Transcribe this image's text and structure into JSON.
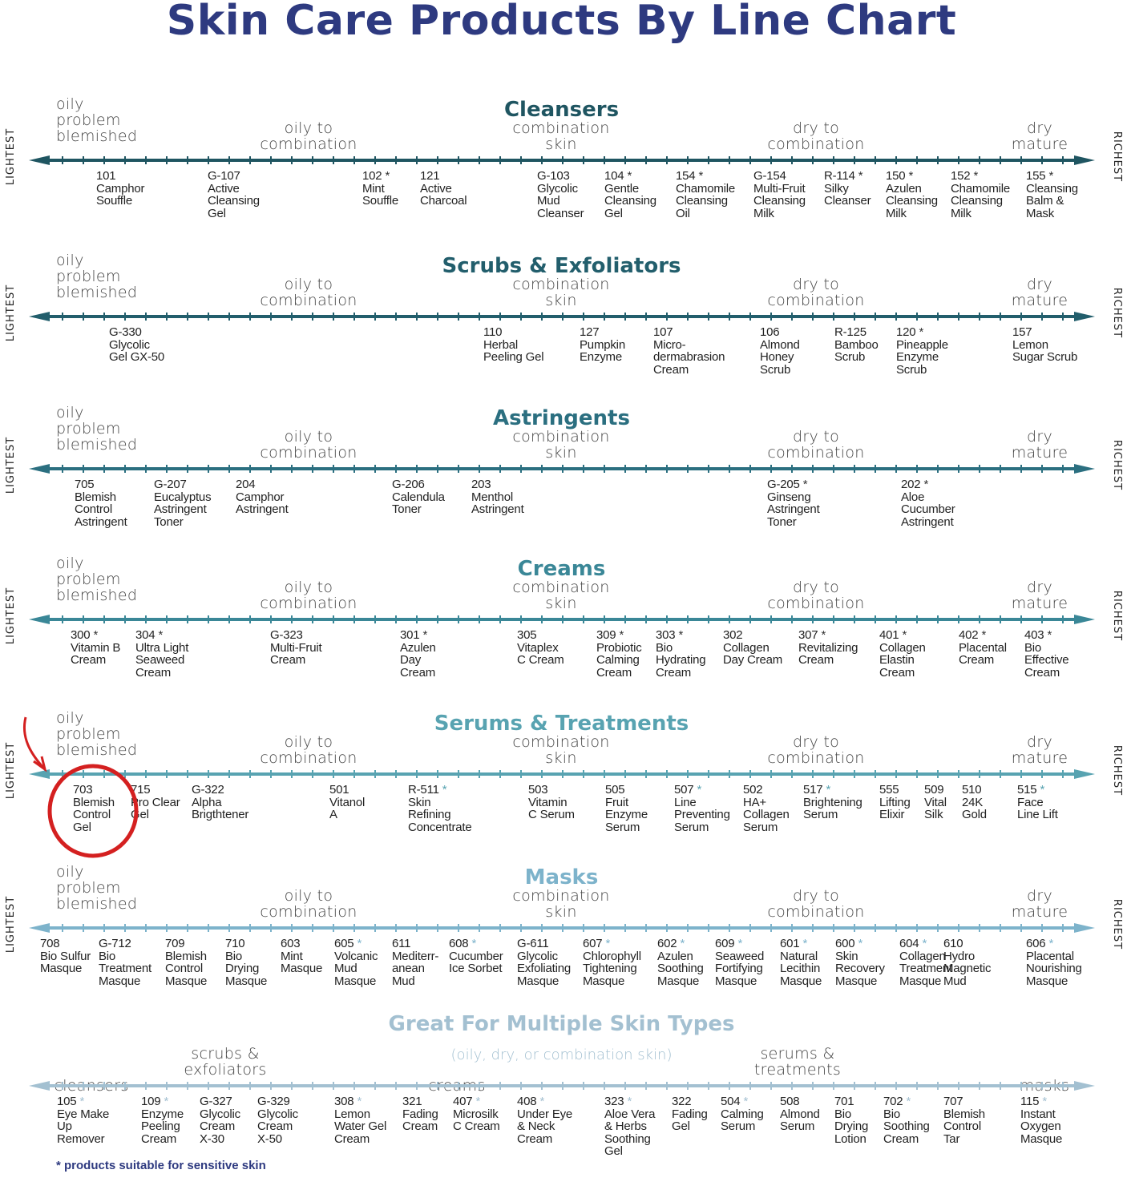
{
  "title": "Skin Care Products By Line Chart",
  "side_left": "LIGHTEST",
  "side_right": "RICHEST",
  "zones": {
    "z1": [
      "oily",
      "problem",
      "blemished"
    ],
    "z2": [
      "oily to",
      "combination"
    ],
    "z3": [
      "combination",
      "skin"
    ],
    "z4": [
      "dry to",
      "combination"
    ],
    "z5": [
      "dry",
      "mature"
    ]
  },
  "colors": {
    "title": "#2e3a80",
    "annotation": "#d42020"
  },
  "footnote": "* products suitable for sensitive skin",
  "sections": [
    {
      "heading": "Cleansers",
      "color": "#1f5561",
      "products": [
        {
          "code": "101",
          "star": false,
          "lines": [
            "Camphor",
            "Souffle"
          ]
        },
        {
          "code": "G-107",
          "star": false,
          "lines": [
            "Active",
            "Cleansing",
            "Gel"
          ]
        },
        {
          "code": "102",
          "star": true,
          "lines": [
            "Mint",
            "Souffle"
          ]
        },
        {
          "code": "121",
          "star": false,
          "lines": [
            "Active",
            "Charcoal"
          ]
        },
        {
          "code": "G-103",
          "star": false,
          "lines": [
            "Glycolic",
            "Mud",
            "Cleanser"
          ]
        },
        {
          "code": "104",
          "star": true,
          "lines": [
            "Gentle",
            "Cleansing",
            "Gel"
          ]
        },
        {
          "code": "154",
          "star": true,
          "lines": [
            "Chamomile",
            "Cleansing",
            "Oil"
          ]
        },
        {
          "code": "G-154",
          "star": false,
          "lines": [
            "Multi-Fruit",
            "Cleansing",
            "Milk"
          ]
        },
        {
          "code": "R-114",
          "star": true,
          "lines": [
            "Silky",
            "Cleanser"
          ]
        },
        {
          "code": "150",
          "star": true,
          "lines": [
            "Azulen",
            "Cleansing",
            "Milk"
          ]
        },
        {
          "code": "152",
          "star": true,
          "lines": [
            "Chamomile",
            "Cleansing",
            "Milk"
          ]
        },
        {
          "code": "155",
          "star": true,
          "lines": [
            "Cleansing",
            "Balm &",
            "Mask"
          ]
        }
      ]
    },
    {
      "heading": "Scrubs & Exfoliators",
      "color": "#225e6c",
      "products": [
        {
          "code": "G-330",
          "star": false,
          "lines": [
            "Glycolic",
            "Gel GX-50"
          ]
        },
        {
          "code": "110",
          "star": false,
          "lines": [
            "Herbal",
            "Peeling Gel"
          ]
        },
        {
          "code": "127",
          "star": false,
          "lines": [
            "Pumpkin",
            "Enzyme"
          ]
        },
        {
          "code": "107",
          "star": false,
          "lines": [
            "Micro-",
            "dermabrasion",
            "Cream"
          ]
        },
        {
          "code": "106",
          "star": false,
          "lines": [
            "Almond",
            "Honey",
            "Scrub"
          ]
        },
        {
          "code": "R-125",
          "star": false,
          "lines": [
            "Bamboo",
            "Scrub"
          ]
        },
        {
          "code": "120",
          "star": true,
          "lines": [
            "Pineapple",
            "Enzyme",
            "Scrub"
          ]
        },
        {
          "code": "157",
          "star": false,
          "lines": [
            "Lemon",
            "Sugar Scrub"
          ]
        }
      ]
    },
    {
      "heading": "Astringents",
      "color": "#2b6f80",
      "products": [
        {
          "code": "705",
          "star": false,
          "lines": [
            "Blemish",
            "Control",
            "Astringent"
          ]
        },
        {
          "code": "G-207",
          "star": false,
          "lines": [
            "Eucalyptus",
            "Astringent",
            "Toner"
          ]
        },
        {
          "code": "204",
          "star": false,
          "lines": [
            "Camphor",
            "Astringent"
          ]
        },
        {
          "code": "G-206",
          "star": false,
          "lines": [
            "Calendula",
            "Toner"
          ]
        },
        {
          "code": "203",
          "star": false,
          "lines": [
            "Menthol",
            "Astringent"
          ]
        },
        {
          "code": "G-205",
          "star": true,
          "lines": [
            "Ginseng",
            "Astringent",
            "Toner"
          ]
        },
        {
          "code": "202",
          "star": true,
          "lines": [
            "Aloe",
            "Cucumber",
            "Astringent"
          ]
        }
      ]
    },
    {
      "heading": "Creams",
      "color": "#3a8797",
      "products": [
        {
          "code": "300",
          "star": true,
          "lines": [
            "Vitamin B",
            "Cream"
          ]
        },
        {
          "code": "304",
          "star": true,
          "lines": [
            "Ultra Light",
            "Seaweed",
            "Cream"
          ]
        },
        {
          "code": "G-323",
          "star": false,
          "lines": [
            "Multi-Fruit",
            "Cream"
          ]
        },
        {
          "code": "301",
          "star": true,
          "lines": [
            "Azulen",
            "Day",
            "Cream"
          ]
        },
        {
          "code": "305",
          "star": false,
          "lines": [
            "Vitaplex",
            "C Cream"
          ]
        },
        {
          "code": "309",
          "star": true,
          "lines": [
            "Probiotic",
            "Calming",
            "Cream"
          ]
        },
        {
          "code": "303",
          "star": true,
          "lines": [
            "Bio",
            "Hydrating",
            "Cream"
          ]
        },
        {
          "code": "302",
          "star": false,
          "lines": [
            "Collagen",
            "Day Cream"
          ]
        },
        {
          "code": "307",
          "star": true,
          "lines": [
            "Revitalizing",
            "Cream"
          ]
        },
        {
          "code": "401",
          "star": true,
          "lines": [
            "Collagen",
            "Elastin",
            "Cream"
          ]
        },
        {
          "code": "402",
          "star": true,
          "lines": [
            "Placental",
            "Cream"
          ]
        },
        {
          "code": "403",
          "star": true,
          "lines": [
            "Bio",
            "Effective",
            "Cream"
          ]
        }
      ]
    },
    {
      "heading": "Serums & Treatments",
      "color": "#58a3b1",
      "products": [
        {
          "code": "703",
          "star": false,
          "lines": [
            "Blemish",
            "Control",
            "Gel"
          ]
        },
        {
          "code": "715",
          "star": false,
          "lines": [
            "Pro Clear",
            "Gel"
          ]
        },
        {
          "code": "G-322",
          "star": false,
          "lines": [
            "Alpha",
            "Brigthtener"
          ]
        },
        {
          "code": "501",
          "star": false,
          "lines": [
            "Vitanol",
            "A"
          ]
        },
        {
          "code": "R-511",
          "star": true,
          "lines": [
            "Skin",
            "Refining",
            "Concentrate"
          ]
        },
        {
          "code": "503",
          "star": false,
          "lines": [
            "Vitamin",
            "C Serum"
          ]
        },
        {
          "code": "505",
          "star": false,
          "lines": [
            "Fruit",
            "Enzyme",
            "Serum"
          ]
        },
        {
          "code": "507",
          "star": true,
          "lines": [
            "Line",
            "Preventing",
            "Serum"
          ]
        },
        {
          "code": "502",
          "star": false,
          "lines": [
            "HA+",
            "Collagen",
            "Serum"
          ]
        },
        {
          "code": "517",
          "star": true,
          "lines": [
            "Brightening",
            "Serum"
          ]
        },
        {
          "code": "555",
          "star": false,
          "lines": [
            "Lifting",
            "Elixir"
          ]
        },
        {
          "code": "509",
          "star": false,
          "lines": [
            "Vital",
            "Silk"
          ]
        },
        {
          "code": "510",
          "star": false,
          "lines": [
            "24K",
            "Gold"
          ]
        },
        {
          "code": "515",
          "star": true,
          "lines": [
            "Face",
            "Line Lift"
          ]
        }
      ]
    },
    {
      "heading": "Masks",
      "color": "#7db3cb",
      "products": [
        {
          "code": "708",
          "star": false,
          "lines": [
            "Bio Sulfur",
            "Masque"
          ]
        },
        {
          "code": "G-712",
          "star": false,
          "lines": [
            "Bio",
            "Treatment",
            "Masque"
          ]
        },
        {
          "code": "709",
          "star": false,
          "lines": [
            "Blemish",
            "Control",
            "Masque"
          ]
        },
        {
          "code": "710",
          "star": false,
          "lines": [
            "Bio",
            "Drying",
            "Masque"
          ]
        },
        {
          "code": "603",
          "star": false,
          "lines": [
            "Mint",
            "Masque"
          ]
        },
        {
          "code": "605",
          "star": true,
          "lines": [
            "Volcanic",
            "Mud",
            "Masque"
          ]
        },
        {
          "code": "611",
          "star": false,
          "lines": [
            "Mediterr-",
            "anean",
            "Mud"
          ]
        },
        {
          "code": "608",
          "star": true,
          "lines": [
            "Cucumber",
            "Ice Sorbet"
          ]
        },
        {
          "code": "G-611",
          "star": false,
          "lines": [
            "Glycolic",
            "Exfoliating",
            "Masque"
          ]
        },
        {
          "code": "607",
          "star": true,
          "lines": [
            "Chlorophyll",
            "Tightening",
            "Masque"
          ]
        },
        {
          "code": "602",
          "star": true,
          "lines": [
            "Azulen",
            "Soothing",
            "Masque"
          ]
        },
        {
          "code": "609",
          "star": true,
          "lines": [
            "Seaweed",
            "Fortifying",
            "Masque"
          ]
        },
        {
          "code": "601",
          "star": true,
          "lines": [
            "Natural",
            "Lecithin",
            "Masque"
          ]
        },
        {
          "code": "600",
          "star": true,
          "lines": [
            "Skin",
            "Recovery",
            "Masque"
          ]
        },
        {
          "code": "604",
          "star": true,
          "lines": [
            "Collagen",
            "Treatment",
            "Masque"
          ]
        },
        {
          "code": "610",
          "star": false,
          "lines": [
            "Hydro",
            "Magnetic",
            "Mud"
          ]
        },
        {
          "code": "606",
          "star": true,
          "lines": [
            "Placental",
            "Nourishing",
            "Masque"
          ]
        }
      ]
    },
    {
      "heading": "Great For Multiple Skin Types",
      "subtitle": "(oily, dry, or combination skin)",
      "color": "#a3c0d1",
      "zones": [
        [
          "cleansers"
        ],
        [
          "scrubs &",
          "exfoliators"
        ],
        [
          "creams"
        ],
        [
          "serums &",
          "treatments"
        ],
        [
          "masks"
        ]
      ],
      "products": [
        {
          "code": "105",
          "star": true,
          "lines": [
            "Eye Make",
            "Up",
            "Remover"
          ]
        },
        {
          "code": "109",
          "star": true,
          "lines": [
            "Enzyme",
            "Peeling",
            "Cream"
          ]
        },
        {
          "code": "G-327",
          "star": false,
          "lines": [
            "Glycolic",
            "Cream",
            "X-30"
          ]
        },
        {
          "code": "G-329",
          "star": false,
          "lines": [
            "Glycolic",
            "Cream",
            "X-50"
          ]
        },
        {
          "code": "308",
          "star": true,
          "lines": [
            "Lemon",
            "Water Gel",
            "Cream"
          ]
        },
        {
          "code": "321",
          "star": false,
          "lines": [
            "Fading",
            "Cream"
          ]
        },
        {
          "code": "407",
          "star": true,
          "lines": [
            "Microsilk",
            "C Cream"
          ]
        },
        {
          "code": "408",
          "star": true,
          "lines": [
            "Under Eye",
            "& Neck",
            "Cream"
          ]
        },
        {
          "code": "323",
          "star": true,
          "lines": [
            "Aloe Vera",
            "& Herbs",
            "Soothing",
            "Gel"
          ]
        },
        {
          "code": "322",
          "star": false,
          "lines": [
            "Fading",
            "Gel"
          ]
        },
        {
          "code": "504",
          "star": true,
          "lines": [
            "Calming",
            "Serum"
          ]
        },
        {
          "code": "508",
          "star": false,
          "lines": [
            "Almond",
            "Serum"
          ]
        },
        {
          "code": "701",
          "star": false,
          "lines": [
            "Bio",
            "Drying",
            "Lotion"
          ]
        },
        {
          "code": "702",
          "star": true,
          "lines": [
            "Bio",
            "Soothing",
            "Cream"
          ]
        },
        {
          "code": "707",
          "star": false,
          "lines": [
            "Blemish",
            "Control",
            "Tar"
          ]
        },
        {
          "code": "115",
          "star": true,
          "lines": [
            "Instant",
            "Oxygen",
            "Masque"
          ]
        }
      ]
    }
  ]
}
